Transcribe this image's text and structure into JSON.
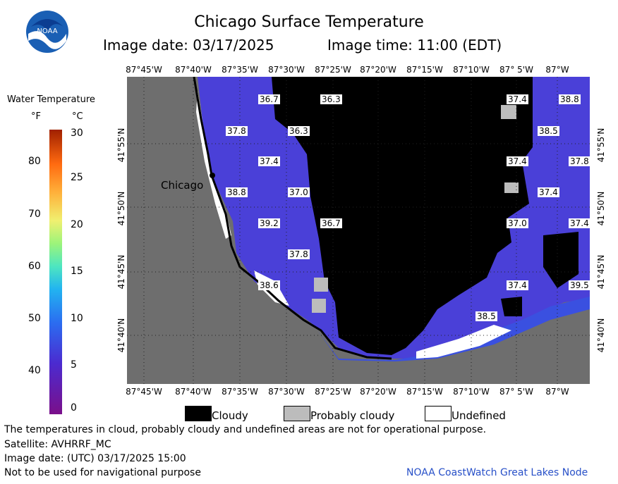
{
  "header": {
    "title": "Chicago Surface Temperature",
    "image_date": "Image date: 03/17/2025",
    "image_time": "Image time: 11:00 (EDT)"
  },
  "logo": {
    "text": "NOAA"
  },
  "colorbar": {
    "title": "Water Temperature",
    "unit_f": "°F",
    "unit_c": "°C",
    "f_ticks": [
      "80",
      "70",
      "60",
      "50",
      "40"
    ],
    "c_ticks": [
      "30",
      "25",
      "20",
      "15",
      "10",
      "5",
      "0"
    ]
  },
  "map": {
    "lon_ticks": [
      "87°45'W",
      "87°40'W",
      "87°35'W",
      "87°30'W",
      "87°25'W",
      "87°20'W",
      "87°15'W",
      "87°10'W",
      "87° 5'W",
      "87°W"
    ],
    "lat_ticks": [
      "41°55'N",
      "41°50'N",
      "41°45'N",
      "41°40'N"
    ],
    "city": "Chicago",
    "temps": [
      "36.7",
      "36.3",
      "37.4",
      "38.8",
      "37.8",
      "36.3",
      "38.5",
      "37.4",
      "37.4",
      "37.8",
      "38.8",
      "37.0",
      "37.4",
      "39.2",
      "36.7",
      "37.0",
      "37.4",
      "37.8",
      "38.6",
      "37.4",
      "39.5",
      "38.5"
    ]
  },
  "legend": {
    "cloudy": "Cloudy",
    "probably_cloudy": "Probably cloudy",
    "undefined": "Undefined"
  },
  "footer": {
    "disclaimer": "The temperatures in cloud, probably cloudy and undefined areas are not for operational purpose.",
    "satellite": "Satellite: AVHRRF_MC",
    "utc": "Image date: (UTC) 03/17/2025  15:00",
    "nav": "Not to be used for navigational purpose",
    "node": "NOAA CoastWatch Great Lakes Node"
  },
  "colors": {
    "land": "#6e6e6e",
    "cloud": "#000000",
    "prob_cloud": "#bcbcbc",
    "water": "#4a40d8",
    "node_text": "#2850c8"
  }
}
